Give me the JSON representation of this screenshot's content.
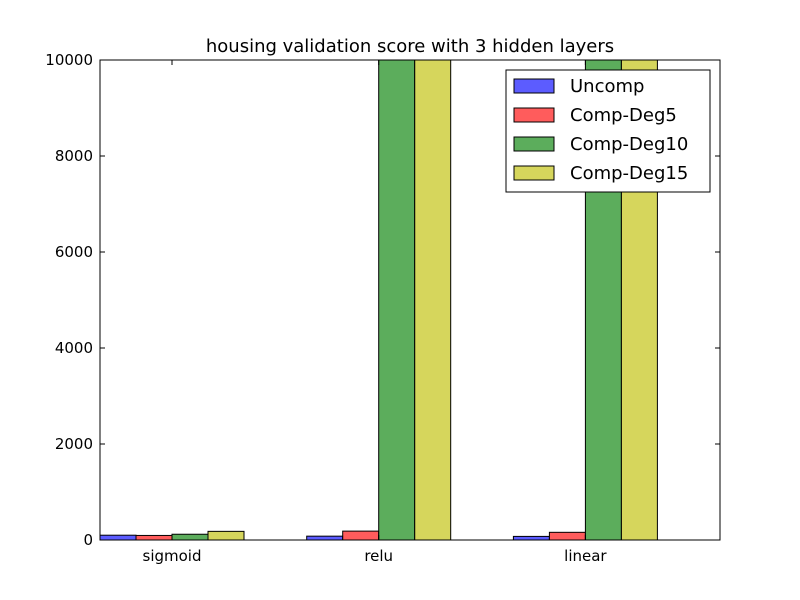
{
  "chart_data": {
    "type": "bar",
    "title": "housing validation score with 3 hidden layers",
    "xlabel": "",
    "ylabel": "",
    "categories": [
      "sigmoid",
      "relu",
      "linear"
    ],
    "series": [
      {
        "name": "Uncomp",
        "values": [
          100,
          80,
          75
        ],
        "color": "#3333ff"
      },
      {
        "name": "Comp-Deg5",
        "values": [
          95,
          185,
          160
        ],
        "color": "#ff3333"
      },
      {
        "name": "Comp-Deg10",
        "values": [
          120,
          10000,
          10000
        ],
        "color": "#339933"
      },
      {
        "name": "Comp-Deg15",
        "values": [
          180,
          10000,
          10000
        ],
        "color": "#cccc33"
      }
    ],
    "ylim": [
      0,
      10000
    ],
    "yticks": [
      0,
      2000,
      4000,
      6000,
      8000,
      10000
    ],
    "ytick_labels": [
      "0",
      "2000",
      "4000",
      "6000",
      "8000",
      "10000"
    ],
    "grid": false,
    "legend_position": "top-right"
  }
}
